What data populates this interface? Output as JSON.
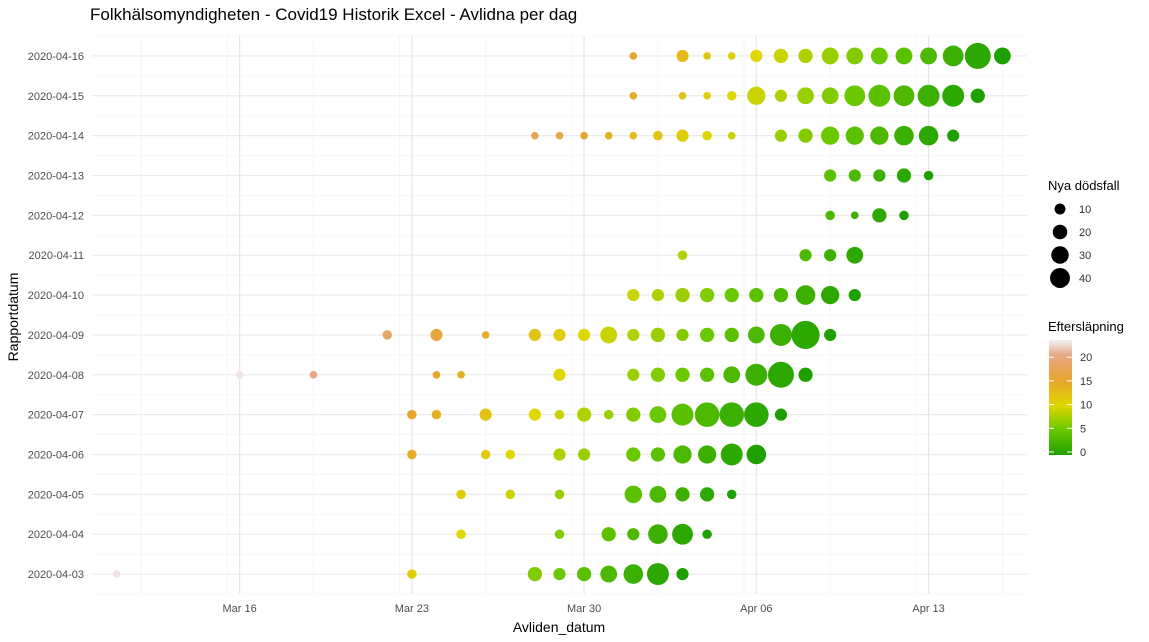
{
  "chart_data": {
    "type": "scatter",
    "title": "Folkhälsomyndigheten - Covid19 Historik Excel - Avlidna per dag",
    "xlabel": "Avliden_datum",
    "ylabel": "Rapportdatum",
    "x_ticks": [
      "Mar 16",
      "Mar 23",
      "Mar 30",
      "Apr 06",
      "Apr 13"
    ],
    "y_categories": [
      "2020-04-03",
      "2020-04-04",
      "2020-04-05",
      "2020-04-06",
      "2020-04-07",
      "2020-04-08",
      "2020-04-09",
      "2020-04-10",
      "2020-04-11",
      "2020-04-12",
      "2020-04-13",
      "2020-04-14",
      "2020-04-15",
      "2020-04-16"
    ],
    "xlim": [
      "2020-03-10",
      "2020-04-17"
    ],
    "grid": true,
    "size_legend": {
      "title": "Nya dödsfall",
      "values": [
        10,
        20,
        30,
        40
      ]
    },
    "color_legend": {
      "title": "Eftersläpning",
      "ticks": [
        0,
        5,
        10,
        15,
        20
      ],
      "range": [
        0,
        23
      ]
    },
    "points": [
      {
        "x": "2020-03-11",
        "y": "2020-04-03",
        "n": 1,
        "lag": 23
      },
      {
        "x": "2020-03-23",
        "y": "2020-04-03",
        "n": 2,
        "lag": 11
      },
      {
        "x": "2020-03-28",
        "y": "2020-04-03",
        "n": 6,
        "lag": 6
      },
      {
        "x": "2020-03-29",
        "y": "2020-04-03",
        "n": 4,
        "lag": 5
      },
      {
        "x": "2020-03-30",
        "y": "2020-04-03",
        "n": 6,
        "lag": 4
      },
      {
        "x": "2020-03-31",
        "y": "2020-04-03",
        "n": 9,
        "lag": 3
      },
      {
        "x": "2020-04-01",
        "y": "2020-04-03",
        "n": 13,
        "lag": 2
      },
      {
        "x": "2020-04-02",
        "y": "2020-04-03",
        "n": 17,
        "lag": 1
      },
      {
        "x": "2020-04-03",
        "y": "2020-04-03",
        "n": 4,
        "lag": 0
      },
      {
        "x": "2020-03-25",
        "y": "2020-04-04",
        "n": 2,
        "lag": 10
      },
      {
        "x": "2020-03-29",
        "y": "2020-04-04",
        "n": 2,
        "lag": 6
      },
      {
        "x": "2020-03-31",
        "y": "2020-04-04",
        "n": 6,
        "lag": 4
      },
      {
        "x": "2020-04-01",
        "y": "2020-04-04",
        "n": 4,
        "lag": 3
      },
      {
        "x": "2020-04-02",
        "y": "2020-04-04",
        "n": 13,
        "lag": 2
      },
      {
        "x": "2020-04-03",
        "y": "2020-04-04",
        "n": 15,
        "lag": 1
      },
      {
        "x": "2020-04-04",
        "y": "2020-04-04",
        "n": 2,
        "lag": 0
      },
      {
        "x": "2020-03-25",
        "y": "2020-04-05",
        "n": 2,
        "lag": 11
      },
      {
        "x": "2020-03-27",
        "y": "2020-04-05",
        "n": 2,
        "lag": 9
      },
      {
        "x": "2020-03-29",
        "y": "2020-04-05",
        "n": 2,
        "lag": 7
      },
      {
        "x": "2020-04-01",
        "y": "2020-04-05",
        "n": 10,
        "lag": 4
      },
      {
        "x": "2020-04-02",
        "y": "2020-04-05",
        "n": 9,
        "lag": 3
      },
      {
        "x": "2020-04-03",
        "y": "2020-04-05",
        "n": 6,
        "lag": 2
      },
      {
        "x": "2020-04-04",
        "y": "2020-04-05",
        "n": 6,
        "lag": 1
      },
      {
        "x": "2020-04-05",
        "y": "2020-04-05",
        "n": 2,
        "lag": 0
      },
      {
        "x": "2020-03-23",
        "y": "2020-04-06",
        "n": 2,
        "lag": 14
      },
      {
        "x": "2020-03-26",
        "y": "2020-04-06",
        "n": 2,
        "lag": 11
      },
      {
        "x": "2020-03-27",
        "y": "2020-04-06",
        "n": 2,
        "lag": 10
      },
      {
        "x": "2020-03-29",
        "y": "2020-04-06",
        "n": 4,
        "lag": 8
      },
      {
        "x": "2020-03-30",
        "y": "2020-04-06",
        "n": 4,
        "lag": 7
      },
      {
        "x": "2020-04-01",
        "y": "2020-04-06",
        "n": 6,
        "lag": 5
      },
      {
        "x": "2020-04-02",
        "y": "2020-04-06",
        "n": 6,
        "lag": 4
      },
      {
        "x": "2020-04-03",
        "y": "2020-04-06",
        "n": 11,
        "lag": 3
      },
      {
        "x": "2020-04-04",
        "y": "2020-04-06",
        "n": 11,
        "lag": 2
      },
      {
        "x": "2020-04-05",
        "y": "2020-04-06",
        "n": 17,
        "lag": 1
      },
      {
        "x": "2020-04-06",
        "y": "2020-04-06",
        "n": 13,
        "lag": 0
      },
      {
        "x": "2020-03-23",
        "y": "2020-04-07",
        "n": 2,
        "lag": 15
      },
      {
        "x": "2020-03-24",
        "y": "2020-04-07",
        "n": 2,
        "lag": 14
      },
      {
        "x": "2020-03-26",
        "y": "2020-04-07",
        "n": 4,
        "lag": 12
      },
      {
        "x": "2020-03-28",
        "y": "2020-04-07",
        "n": 4,
        "lag": 10
      },
      {
        "x": "2020-03-29",
        "y": "2020-04-07",
        "n": 2,
        "lag": 9
      },
      {
        "x": "2020-03-30",
        "y": "2020-04-07",
        "n": 6,
        "lag": 8
      },
      {
        "x": "2020-03-31",
        "y": "2020-04-07",
        "n": 2,
        "lag": 7
      },
      {
        "x": "2020-04-01",
        "y": "2020-04-07",
        "n": 6,
        "lag": 6
      },
      {
        "x": "2020-04-02",
        "y": "2020-04-07",
        "n": 9,
        "lag": 5
      },
      {
        "x": "2020-04-03",
        "y": "2020-04-07",
        "n": 17,
        "lag": 4
      },
      {
        "x": "2020-04-04",
        "y": "2020-04-07",
        "n": 22,
        "lag": 3
      },
      {
        "x": "2020-04-05",
        "y": "2020-04-07",
        "n": 22,
        "lag": 2
      },
      {
        "x": "2020-04-06",
        "y": "2020-04-07",
        "n": 22,
        "lag": 1
      },
      {
        "x": "2020-04-07",
        "y": "2020-04-07",
        "n": 4,
        "lag": 0
      },
      {
        "x": "2020-03-16",
        "y": "2020-04-08",
        "n": 1,
        "lag": 23
      },
      {
        "x": "2020-03-19",
        "y": "2020-04-08",
        "n": 1,
        "lag": 20
      },
      {
        "x": "2020-03-24",
        "y": "2020-04-08",
        "n": 1,
        "lag": 15
      },
      {
        "x": "2020-03-25",
        "y": "2020-04-08",
        "n": 1,
        "lag": 14
      },
      {
        "x": "2020-03-29",
        "y": "2020-04-08",
        "n": 4,
        "lag": 10
      },
      {
        "x": "2020-04-01",
        "y": "2020-04-08",
        "n": 4,
        "lag": 7
      },
      {
        "x": "2020-04-02",
        "y": "2020-04-08",
        "n": 6,
        "lag": 6
      },
      {
        "x": "2020-04-03",
        "y": "2020-04-08",
        "n": 6,
        "lag": 5
      },
      {
        "x": "2020-04-04",
        "y": "2020-04-08",
        "n": 6,
        "lag": 4
      },
      {
        "x": "2020-04-05",
        "y": "2020-04-08",
        "n": 9,
        "lag": 3
      },
      {
        "x": "2020-04-06",
        "y": "2020-04-08",
        "n": 17,
        "lag": 2
      },
      {
        "x": "2020-04-07",
        "y": "2020-04-08",
        "n": 25,
        "lag": 1
      },
      {
        "x": "2020-04-08",
        "y": "2020-04-08",
        "n": 6,
        "lag": 0
      },
      {
        "x": "2020-03-22",
        "y": "2020-04-09",
        "n": 2,
        "lag": 18
      },
      {
        "x": "2020-03-24",
        "y": "2020-04-09",
        "n": 4,
        "lag": 16
      },
      {
        "x": "2020-03-26",
        "y": "2020-04-09",
        "n": 1,
        "lag": 14
      },
      {
        "x": "2020-03-28",
        "y": "2020-04-09",
        "n": 4,
        "lag": 12
      },
      {
        "x": "2020-03-29",
        "y": "2020-04-09",
        "n": 4,
        "lag": 11
      },
      {
        "x": "2020-03-30",
        "y": "2020-04-09",
        "n": 4,
        "lag": 10
      },
      {
        "x": "2020-03-31",
        "y": "2020-04-09",
        "n": 9,
        "lag": 9
      },
      {
        "x": "2020-04-01",
        "y": "2020-04-09",
        "n": 4,
        "lag": 8
      },
      {
        "x": "2020-04-02",
        "y": "2020-04-09",
        "n": 6,
        "lag": 7
      },
      {
        "x": "2020-04-03",
        "y": "2020-04-09",
        "n": 4,
        "lag": 6
      },
      {
        "x": "2020-04-04",
        "y": "2020-04-09",
        "n": 6,
        "lag": 5
      },
      {
        "x": "2020-04-05",
        "y": "2020-04-09",
        "n": 6,
        "lag": 4
      },
      {
        "x": "2020-04-06",
        "y": "2020-04-09",
        "n": 9,
        "lag": 3
      },
      {
        "x": "2020-04-07",
        "y": "2020-04-09",
        "n": 17,
        "lag": 2
      },
      {
        "x": "2020-04-08",
        "y": "2020-04-09",
        "n": 30,
        "lag": 1
      },
      {
        "x": "2020-04-09",
        "y": "2020-04-09",
        "n": 4,
        "lag": 0
      },
      {
        "x": "2020-04-01",
        "y": "2020-04-10",
        "n": 4,
        "lag": 9
      },
      {
        "x": "2020-04-02",
        "y": "2020-04-10",
        "n": 4,
        "lag": 8
      },
      {
        "x": "2020-04-03",
        "y": "2020-04-10",
        "n": 6,
        "lag": 7
      },
      {
        "x": "2020-04-04",
        "y": "2020-04-10",
        "n": 6,
        "lag": 6
      },
      {
        "x": "2020-04-05",
        "y": "2020-04-10",
        "n": 6,
        "lag": 5
      },
      {
        "x": "2020-04-06",
        "y": "2020-04-10",
        "n": 6,
        "lag": 4
      },
      {
        "x": "2020-04-07",
        "y": "2020-04-10",
        "n": 6,
        "lag": 3
      },
      {
        "x": "2020-04-08",
        "y": "2020-04-10",
        "n": 13,
        "lag": 2
      },
      {
        "x": "2020-04-09",
        "y": "2020-04-10",
        "n": 11,
        "lag": 1
      },
      {
        "x": "2020-04-10",
        "y": "2020-04-10",
        "n": 4,
        "lag": 0
      },
      {
        "x": "2020-04-03",
        "y": "2020-04-11",
        "n": 2,
        "lag": 8
      },
      {
        "x": "2020-04-08",
        "y": "2020-04-11",
        "n": 4,
        "lag": 3
      },
      {
        "x": "2020-04-09",
        "y": "2020-04-11",
        "n": 4,
        "lag": 2
      },
      {
        "x": "2020-04-10",
        "y": "2020-04-11",
        "n": 9,
        "lag": 1
      },
      {
        "x": "2020-04-09",
        "y": "2020-04-12",
        "n": 2,
        "lag": 3
      },
      {
        "x": "2020-04-10",
        "y": "2020-04-12",
        "n": 1,
        "lag": 2
      },
      {
        "x": "2020-04-11",
        "y": "2020-04-12",
        "n": 6,
        "lag": 1
      },
      {
        "x": "2020-04-12",
        "y": "2020-04-12",
        "n": 2,
        "lag": 0
      },
      {
        "x": "2020-04-09",
        "y": "2020-04-13",
        "n": 4,
        "lag": 4
      },
      {
        "x": "2020-04-10",
        "y": "2020-04-13",
        "n": 4,
        "lag": 3
      },
      {
        "x": "2020-04-11",
        "y": "2020-04-13",
        "n": 4,
        "lag": 2
      },
      {
        "x": "2020-04-12",
        "y": "2020-04-13",
        "n": 6,
        "lag": 1
      },
      {
        "x": "2020-04-13",
        "y": "2020-04-13",
        "n": 2,
        "lag": 0
      },
      {
        "x": "2020-03-28",
        "y": "2020-04-14",
        "n": 1,
        "lag": 17
      },
      {
        "x": "2020-03-29",
        "y": "2020-04-14",
        "n": 1,
        "lag": 16
      },
      {
        "x": "2020-03-30",
        "y": "2020-04-14",
        "n": 1,
        "lag": 15
      },
      {
        "x": "2020-03-31",
        "y": "2020-04-14",
        "n": 1,
        "lag": 14
      },
      {
        "x": "2020-04-01",
        "y": "2020-04-14",
        "n": 1,
        "lag": 13
      },
      {
        "x": "2020-04-02",
        "y": "2020-04-14",
        "n": 2,
        "lag": 12
      },
      {
        "x": "2020-04-03",
        "y": "2020-04-14",
        "n": 4,
        "lag": 11
      },
      {
        "x": "2020-04-04",
        "y": "2020-04-14",
        "n": 2,
        "lag": 10
      },
      {
        "x": "2020-04-05",
        "y": "2020-04-14",
        "n": 1,
        "lag": 9
      },
      {
        "x": "2020-04-07",
        "y": "2020-04-14",
        "n": 4,
        "lag": 7
      },
      {
        "x": "2020-04-08",
        "y": "2020-04-14",
        "n": 6,
        "lag": 6
      },
      {
        "x": "2020-04-09",
        "y": "2020-04-14",
        "n": 11,
        "lag": 5
      },
      {
        "x": "2020-04-10",
        "y": "2020-04-14",
        "n": 11,
        "lag": 4
      },
      {
        "x": "2020-04-11",
        "y": "2020-04-14",
        "n": 11,
        "lag": 3
      },
      {
        "x": "2020-04-12",
        "y": "2020-04-14",
        "n": 13,
        "lag": 2
      },
      {
        "x": "2020-04-13",
        "y": "2020-04-14",
        "n": 13,
        "lag": 1
      },
      {
        "x": "2020-04-14",
        "y": "2020-04-14",
        "n": 4,
        "lag": 0
      },
      {
        "x": "2020-04-01",
        "y": "2020-04-15",
        "n": 1,
        "lag": 14
      },
      {
        "x": "2020-04-03",
        "y": "2020-04-15",
        "n": 1,
        "lag": 12
      },
      {
        "x": "2020-04-04",
        "y": "2020-04-15",
        "n": 1,
        "lag": 11
      },
      {
        "x": "2020-04-05",
        "y": "2020-04-15",
        "n": 2,
        "lag": 10
      },
      {
        "x": "2020-04-06",
        "y": "2020-04-15",
        "n": 11,
        "lag": 9
      },
      {
        "x": "2020-04-07",
        "y": "2020-04-15",
        "n": 4,
        "lag": 8
      },
      {
        "x": "2020-04-08",
        "y": "2020-04-15",
        "n": 9,
        "lag": 7
      },
      {
        "x": "2020-04-09",
        "y": "2020-04-15",
        "n": 9,
        "lag": 6
      },
      {
        "x": "2020-04-10",
        "y": "2020-04-15",
        "n": 15,
        "lag": 5
      },
      {
        "x": "2020-04-11",
        "y": "2020-04-15",
        "n": 17,
        "lag": 4
      },
      {
        "x": "2020-04-12",
        "y": "2020-04-15",
        "n": 15,
        "lag": 3
      },
      {
        "x": "2020-04-13",
        "y": "2020-04-15",
        "n": 17,
        "lag": 2
      },
      {
        "x": "2020-04-14",
        "y": "2020-04-15",
        "n": 17,
        "lag": 1
      },
      {
        "x": "2020-04-15",
        "y": "2020-04-15",
        "n": 6,
        "lag": 0
      },
      {
        "x": "2020-04-01",
        "y": "2020-04-16",
        "n": 1,
        "lag": 15
      },
      {
        "x": "2020-04-03",
        "y": "2020-04-16",
        "n": 4,
        "lag": 13
      },
      {
        "x": "2020-04-04",
        "y": "2020-04-16",
        "n": 1,
        "lag": 12
      },
      {
        "x": "2020-04-05",
        "y": "2020-04-16",
        "n": 1,
        "lag": 11
      },
      {
        "x": "2020-04-06",
        "y": "2020-04-16",
        "n": 4,
        "lag": 10
      },
      {
        "x": "2020-04-07",
        "y": "2020-04-16",
        "n": 6,
        "lag": 9
      },
      {
        "x": "2020-04-08",
        "y": "2020-04-16",
        "n": 6,
        "lag": 8
      },
      {
        "x": "2020-04-09",
        "y": "2020-04-16",
        "n": 9,
        "lag": 7
      },
      {
        "x": "2020-04-10",
        "y": "2020-04-16",
        "n": 9,
        "lag": 6
      },
      {
        "x": "2020-04-11",
        "y": "2020-04-16",
        "n": 9,
        "lag": 5
      },
      {
        "x": "2020-04-12",
        "y": "2020-04-16",
        "n": 9,
        "lag": 4
      },
      {
        "x": "2020-04-13",
        "y": "2020-04-16",
        "n": 9,
        "lag": 3
      },
      {
        "x": "2020-04-14",
        "y": "2020-04-16",
        "n": 15,
        "lag": 2
      },
      {
        "x": "2020-04-15",
        "y": "2020-04-16",
        "n": 25,
        "lag": 1
      },
      {
        "x": "2020-04-16",
        "y": "2020-04-16",
        "n": 9,
        "lag": 0
      }
    ]
  }
}
